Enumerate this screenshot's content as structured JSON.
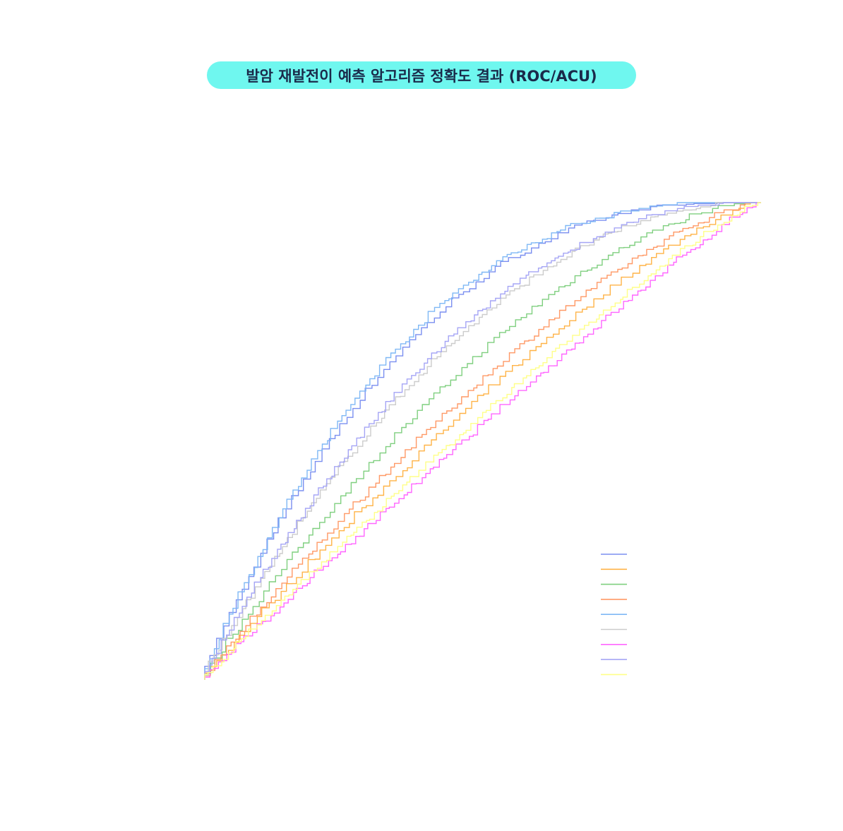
{
  "title": "발암 재발전이 예측 알고리즘 정확도 결과 (ROC/ACU)",
  "colors": {
    "title_bg": "#6ff7ef",
    "title_text": "#1a2a4a"
  },
  "chart_data": {
    "type": "line",
    "title": "발암 재발전이 예측 알고리즘 정확도 결과 (ROC/ACU)",
    "xlabel": "",
    "ylabel": "",
    "xlim": [
      0,
      1
    ],
    "ylim": [
      0,
      1
    ],
    "grid": false,
    "legend_position": "bottom-right",
    "series": [
      {
        "color": "#7b8ff0",
        "shape": 0.7
      },
      {
        "color": "#ffb347",
        "shape": 0.25
      },
      {
        "color": "#7fcf7f",
        "shape": 0.45
      },
      {
        "color": "#ff9966",
        "shape": 0.33
      },
      {
        "color": "#7fb8f5",
        "shape": 0.72
      },
      {
        "color": "#cccccc",
        "shape": 0.58
      },
      {
        "color": "#ff66ff",
        "shape": 0.09
      },
      {
        "color": "#a5a5f5",
        "shape": 0.6
      },
      {
        "color": "#ffff88",
        "shape": 0.15
      }
    ]
  }
}
